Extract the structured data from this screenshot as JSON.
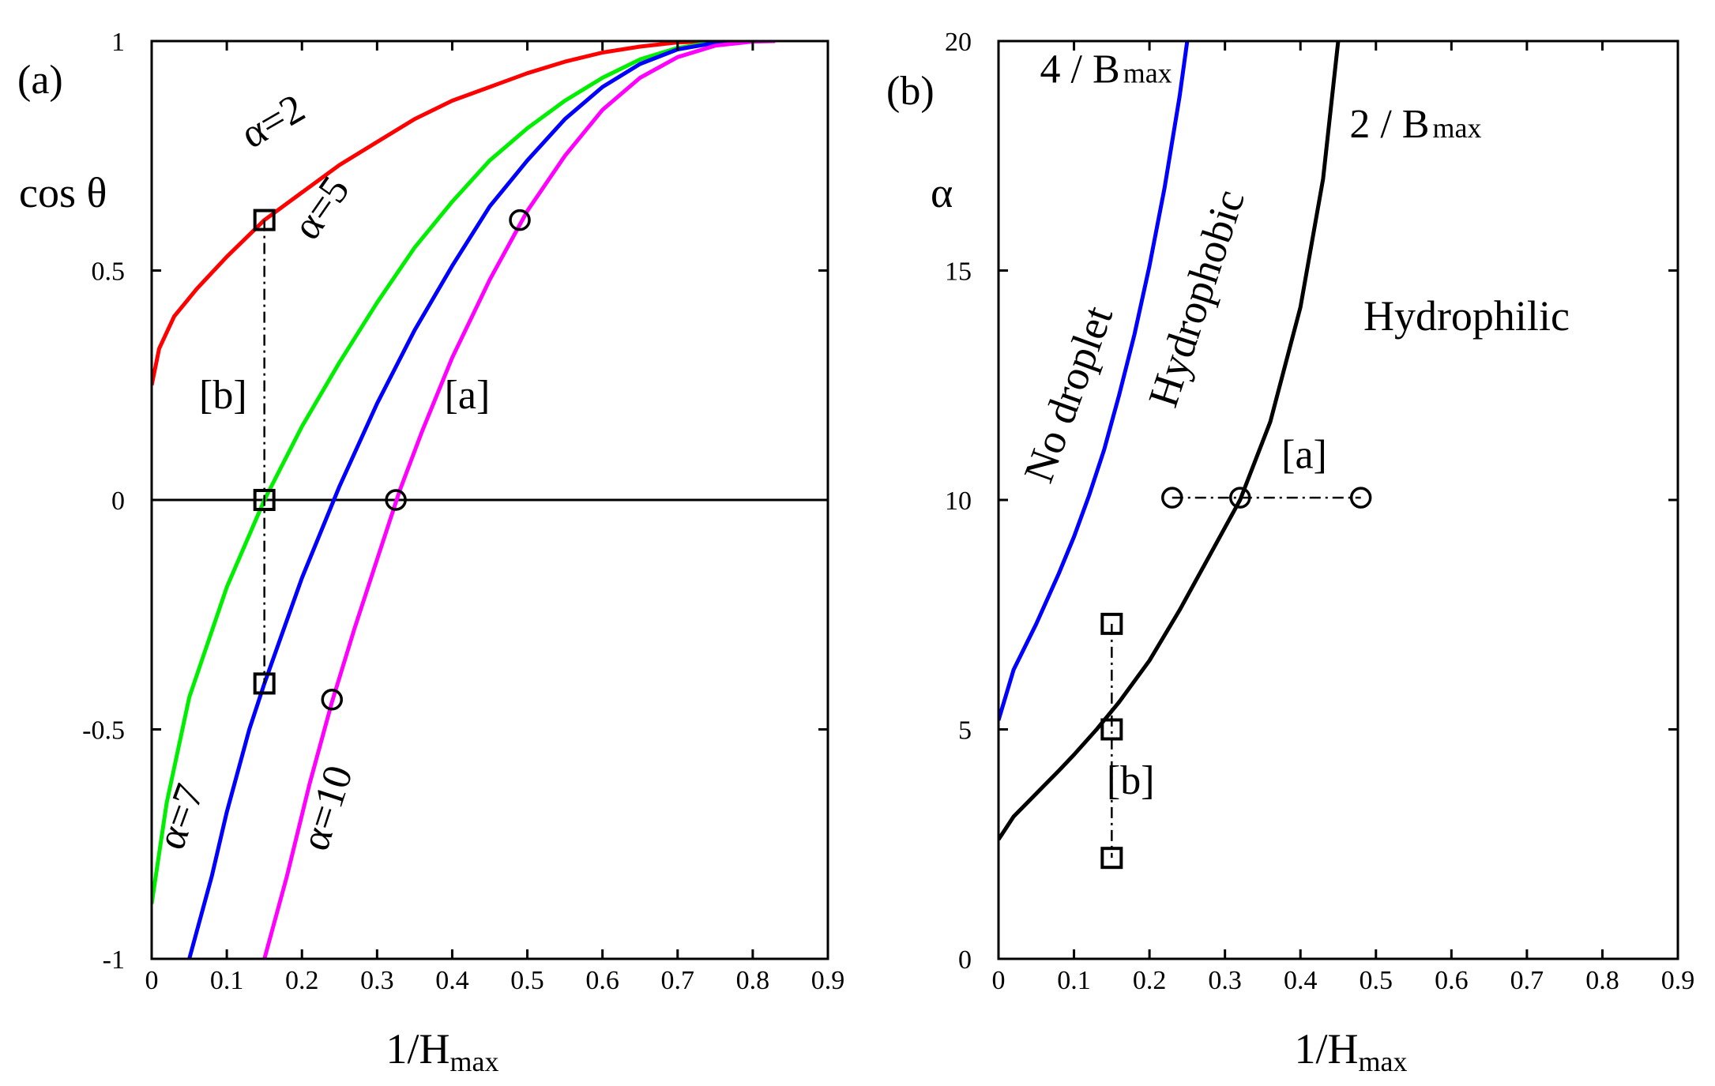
{
  "chart_data": [
    {
      "type": "line",
      "panel_label": "(a)",
      "xlabel": "1/H",
      "xlabel_sub": "max",
      "ylabel": "cos θ",
      "xlim": [
        0,
        0.9
      ],
      "ylim": [
        -1,
        1
      ],
      "x_ticks": [
        "0",
        "0.1",
        "0.2",
        "0.3",
        "0.4",
        "0.5",
        "0.6",
        "0.7",
        "0.8",
        "0.9"
      ],
      "y_ticks": [
        "-1",
        "-0.5",
        "0",
        "0.5",
        "1"
      ],
      "reference_line_y": 0,
      "series": [
        {
          "name": "α=2",
          "color": "#ff0000",
          "label_angle": -30,
          "x": [
            0.0,
            0.01,
            0.03,
            0.06,
            0.1,
            0.15,
            0.2,
            0.25,
            0.3,
            0.35,
            0.4,
            0.45,
            0.5,
            0.55,
            0.6,
            0.65,
            0.7,
            0.75
          ],
          "y": [
            0.25,
            0.33,
            0.4,
            0.46,
            0.53,
            0.61,
            0.67,
            0.73,
            0.78,
            0.83,
            0.87,
            0.9,
            0.93,
            0.955,
            0.975,
            0.988,
            0.997,
            1.0
          ]
        },
        {
          "name": "α=5",
          "color": "#00ee00",
          "label_angle": -55,
          "x": [
            0.0,
            0.02,
            0.05,
            0.1,
            0.15,
            0.2,
            0.25,
            0.3,
            0.35,
            0.4,
            0.45,
            0.5,
            0.55,
            0.6,
            0.65,
            0.7,
            0.75,
            0.78
          ],
          "y": [
            -0.88,
            -0.66,
            -0.43,
            -0.19,
            0.0,
            0.16,
            0.3,
            0.43,
            0.55,
            0.65,
            0.74,
            0.81,
            0.87,
            0.92,
            0.96,
            0.985,
            0.998,
            1.0
          ]
        },
        {
          "name": "α=7",
          "color": "#0000ff",
          "label_angle": -70,
          "x": [
            0.05,
            0.08,
            0.1,
            0.13,
            0.15,
            0.2,
            0.25,
            0.3,
            0.35,
            0.4,
            0.45,
            0.5,
            0.55,
            0.6,
            0.65,
            0.7,
            0.75,
            0.8
          ],
          "y": [
            -1.0,
            -0.82,
            -0.68,
            -0.5,
            -0.4,
            -0.17,
            0.03,
            0.21,
            0.37,
            0.51,
            0.64,
            0.74,
            0.83,
            0.9,
            0.95,
            0.982,
            0.996,
            1.0
          ]
        },
        {
          "name": "α=10",
          "color": "#ff00ff",
          "label_angle": -72,
          "x": [
            0.15,
            0.18,
            0.21,
            0.24,
            0.27,
            0.3,
            0.33,
            0.36,
            0.4,
            0.45,
            0.5,
            0.55,
            0.6,
            0.65,
            0.7,
            0.75,
            0.8,
            0.83
          ],
          "y": [
            -1.0,
            -0.82,
            -0.62,
            -0.44,
            -0.28,
            -0.13,
            0.02,
            0.15,
            0.31,
            0.48,
            0.63,
            0.75,
            0.85,
            0.92,
            0.965,
            0.99,
            0.999,
            1.0
          ]
        }
      ],
      "marker_groups": [
        {
          "label": "[b]",
          "marker": "square",
          "connector": "vertical",
          "points": [
            [
              0.15,
              0.61
            ],
            [
              0.15,
              0.0
            ],
            [
              0.15,
              -0.4
            ]
          ]
        },
        {
          "label": "[a]",
          "marker": "circle",
          "connector": "none",
          "points": [
            [
              0.49,
              0.61
            ],
            [
              0.325,
              0.0
            ],
            [
              0.24,
              -0.435
            ]
          ]
        }
      ]
    },
    {
      "type": "line",
      "panel_label": "(b)",
      "xlabel": "1/H",
      "xlabel_sub": "max",
      "ylabel": "α",
      "xlim": [
        0,
        0.9
      ],
      "ylim": [
        0,
        20
      ],
      "x_ticks": [
        "0",
        "0.1",
        "0.2",
        "0.3",
        "0.4",
        "0.5",
        "0.6",
        "0.7",
        "0.8",
        "0.9"
      ],
      "y_ticks": [
        "0",
        "5",
        "10",
        "15",
        "20"
      ],
      "series": [
        {
          "name": "4 / B",
          "name_sub": "max",
          "color": "#0000ff",
          "x": [
            0.0,
            0.02,
            0.05,
            0.08,
            0.1,
            0.12,
            0.14,
            0.16,
            0.18,
            0.2,
            0.22,
            0.24,
            0.25
          ],
          "y": [
            5.2,
            6.3,
            7.3,
            8.4,
            9.2,
            10.1,
            11.1,
            12.3,
            13.6,
            15.1,
            16.8,
            18.8,
            20.0
          ]
        },
        {
          "name": "2 / B",
          "name_sub": "max",
          "color": "#000000",
          "x": [
            0.0,
            0.02,
            0.05,
            0.08,
            0.1,
            0.13,
            0.16,
            0.2,
            0.24,
            0.28,
            0.32,
            0.36,
            0.4,
            0.43,
            0.45
          ],
          "y": [
            2.6,
            3.1,
            3.6,
            4.1,
            4.45,
            5.0,
            5.6,
            6.5,
            7.6,
            8.8,
            10.0,
            11.7,
            14.2,
            17.0,
            20.0
          ]
        }
      ],
      "regions": [
        {
          "text": "No droplet",
          "x": 0.11,
          "y": 12.2,
          "angle": -70
        },
        {
          "text": "Hydrophobic",
          "x": 0.28,
          "y": 14.3,
          "angle": -72
        },
        {
          "text": "Hydrophilic",
          "x": 0.62,
          "y": 13.7,
          "angle": 0
        }
      ],
      "marker_groups": [
        {
          "label": "[a]",
          "marker": "circle",
          "connector": "horizontal",
          "points": [
            [
              0.23,
              10.05
            ],
            [
              0.32,
              10.05
            ],
            [
              0.48,
              10.05
            ]
          ]
        },
        {
          "label": "[b]",
          "marker": "square",
          "connector": "vertical",
          "points": [
            [
              0.15,
              7.3
            ],
            [
              0.15,
              5.0
            ],
            [
              0.15,
              2.2
            ]
          ]
        }
      ]
    }
  ]
}
